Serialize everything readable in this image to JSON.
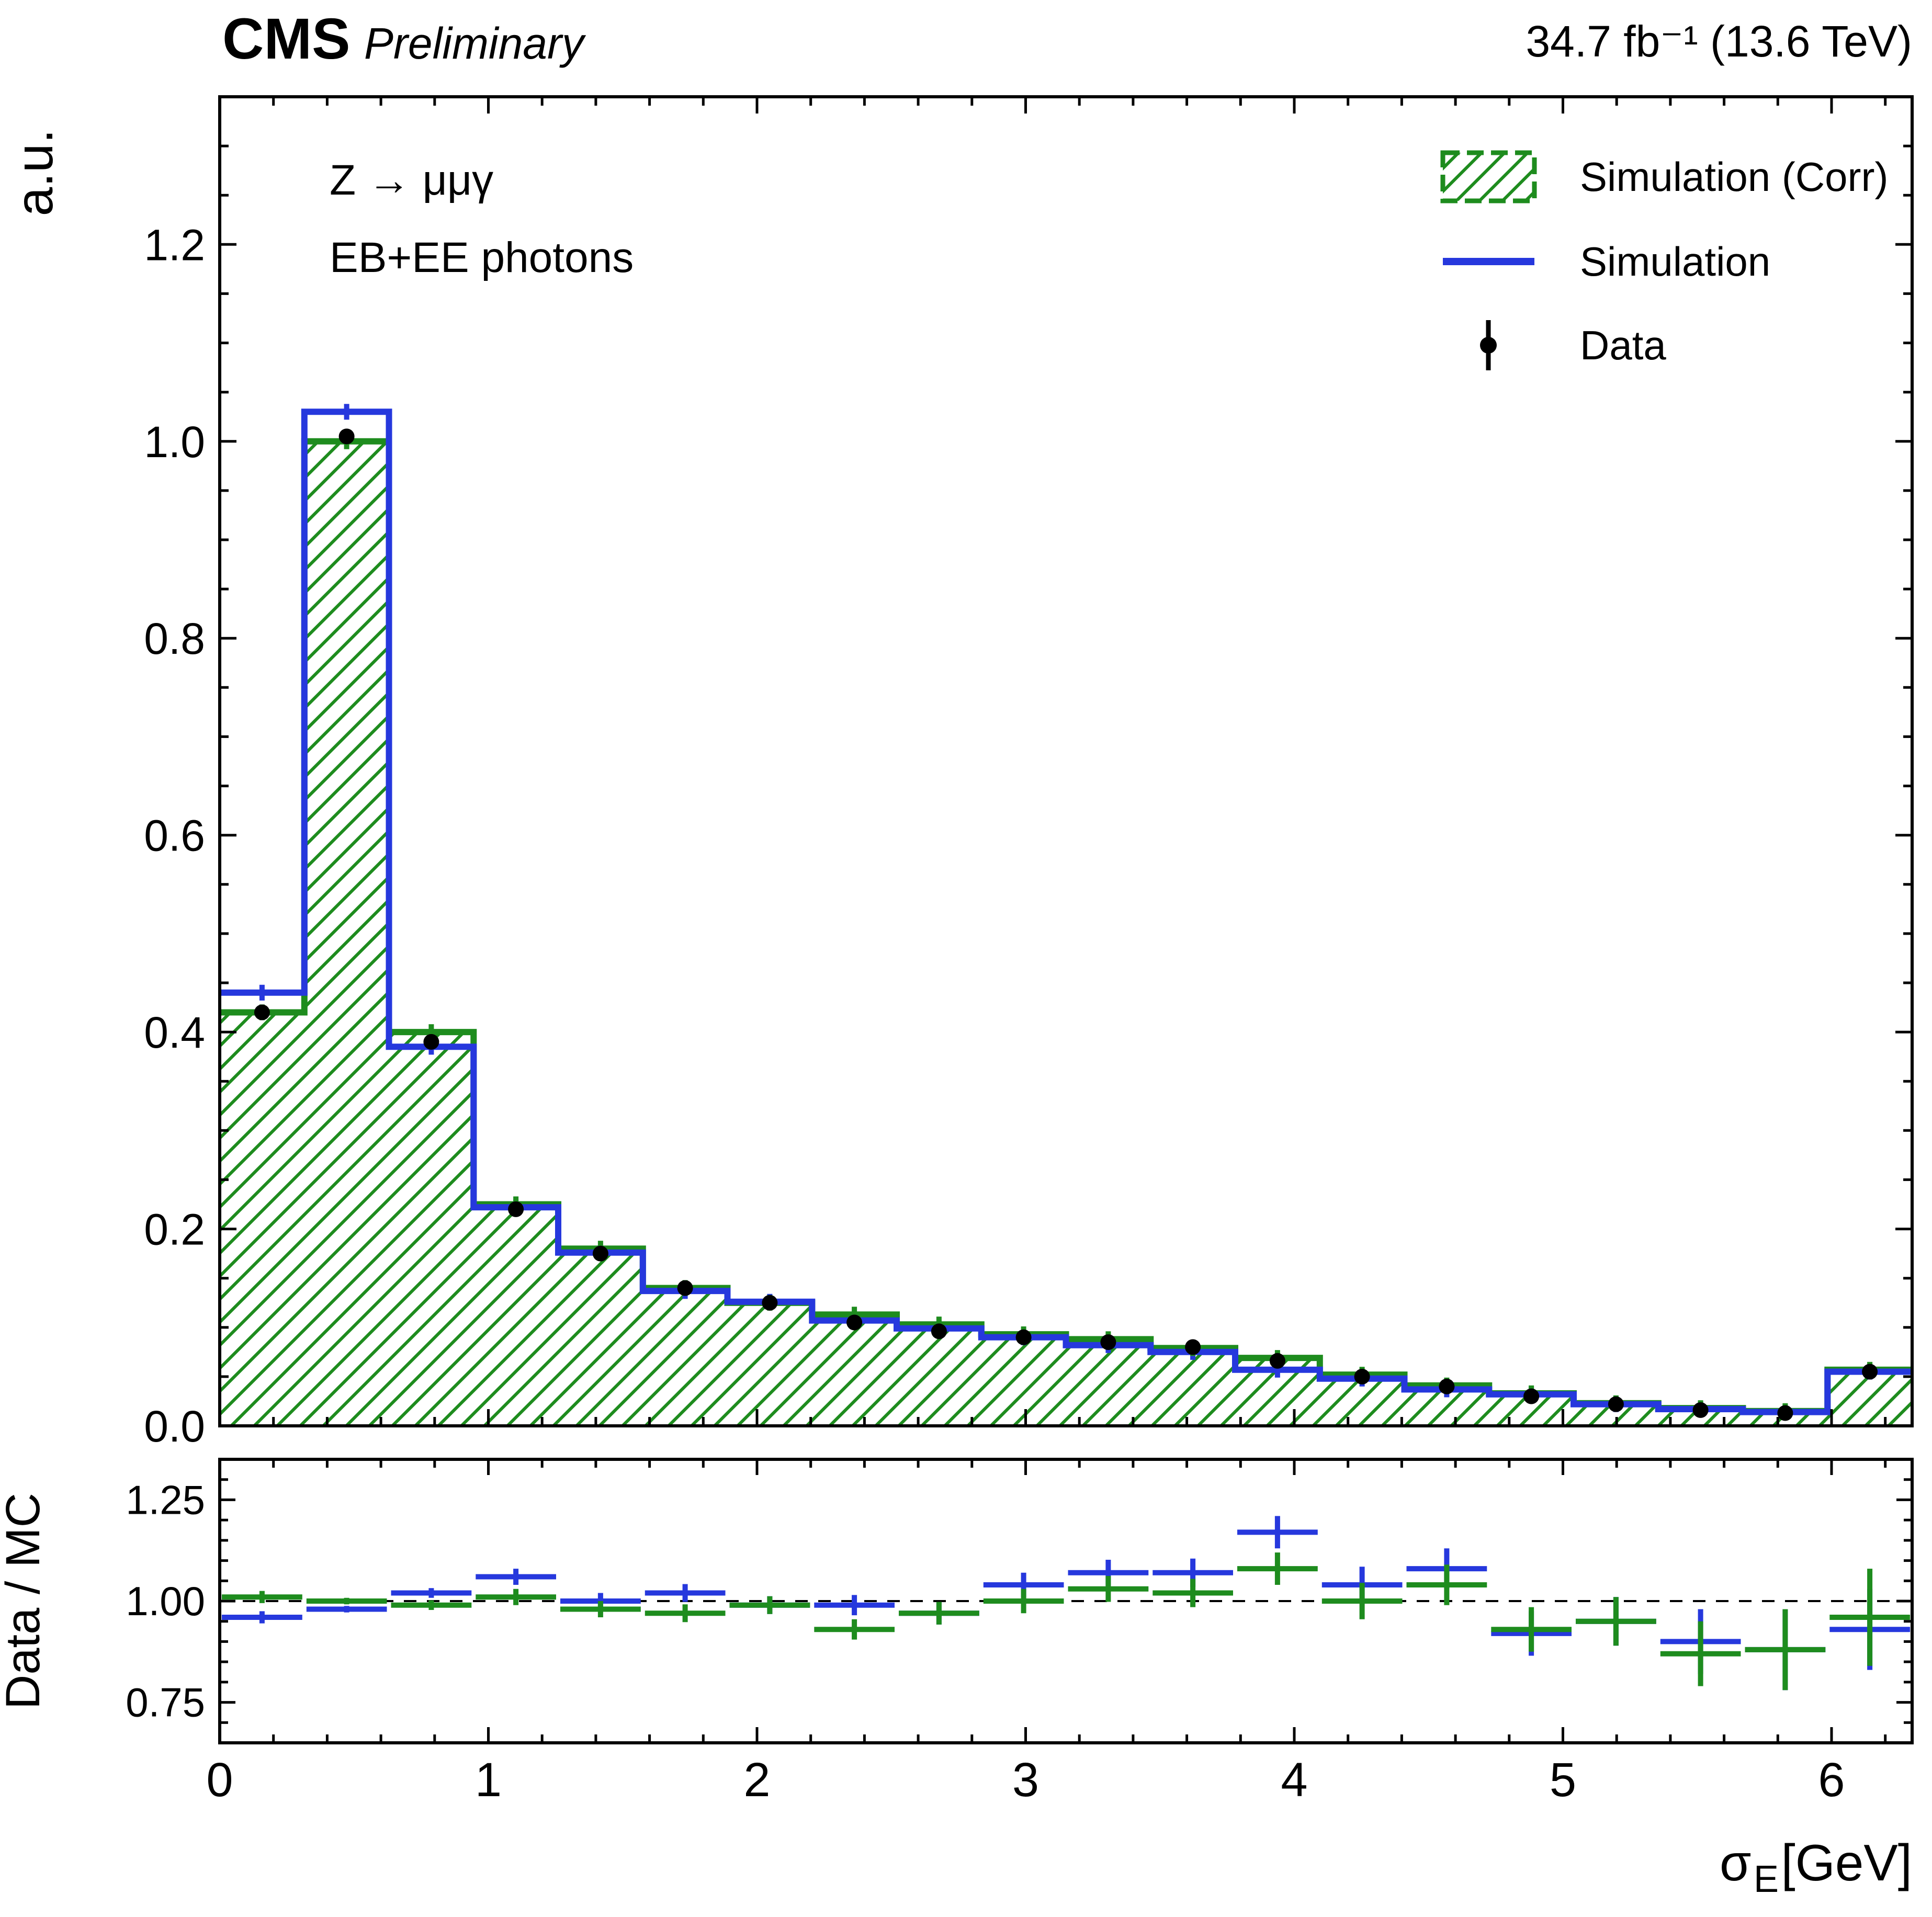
{
  "header": {
    "experiment": "CMS",
    "status": "Preliminary",
    "lumi": "34.7 fb⁻¹ (13.6 TeV)"
  },
  "annotations": {
    "process": "Z → μμγ",
    "selection": "EB+EE photons"
  },
  "axes": {
    "main_y_title": "a.u.",
    "ratio_y_title": "Data / MC",
    "x_symbol": "σ",
    "x_subscript": "E",
    "x_unit": " [GeV]"
  },
  "legend": {
    "items": [
      {
        "label": "Simulation (Corr)",
        "marker": "hatched-box"
      },
      {
        "label": "Simulation",
        "marker": "line"
      },
      {
        "label": "Data",
        "marker": "point-errorbar"
      }
    ]
  },
  "colors": {
    "sim_corr_green": "#1e8c1e",
    "sim_blue": "#2638dd",
    "data_black": "#000000"
  },
  "chart_data": {
    "type": "histogram+ratio",
    "x_range": [
      0,
      6.3
    ],
    "bins": 20,
    "xticks": [
      0,
      1,
      2,
      3,
      4,
      5,
      6
    ],
    "xtick_labels": [
      "0",
      "1",
      "2",
      "3",
      "4",
      "5",
      "6"
    ],
    "mc_stat_error": 0.008,
    "main": {
      "ylim": [
        0,
        1.35
      ],
      "yticks": [
        0,
        0.2,
        0.4,
        0.6,
        0.8,
        1.0,
        1.2
      ],
      "ytick_labels": [
        "0.0",
        "0.2",
        "0.4",
        "0.6",
        "0.8",
        "1.0",
        "1.2"
      ],
      "series": [
        {
          "name": "Simulation (Corr)",
          "style": "hatched_steps",
          "values": [
            0.42,
            1.0,
            0.4,
            0.225,
            0.18,
            0.14,
            0.125,
            0.113,
            0.103,
            0.093,
            0.088,
            0.079,
            0.069,
            0.052,
            0.041,
            0.033,
            0.023,
            0.018,
            0.015,
            0.057
          ]
        },
        {
          "name": "Simulation",
          "style": "steps",
          "values": [
            0.44,
            1.03,
            0.385,
            0.222,
            0.176,
            0.137,
            0.126,
            0.107,
            0.099,
            0.09,
            0.082,
            0.075,
            0.057,
            0.048,
            0.037,
            0.032,
            0.022,
            0.017,
            0.014,
            0.055
          ]
        },
        {
          "name": "Data",
          "style": "points",
          "error": 0.005,
          "values": [
            0.42,
            1.005,
            0.39,
            0.22,
            0.175,
            0.14,
            0.125,
            0.105,
            0.096,
            0.09,
            0.085,
            0.08,
            0.066,
            0.05,
            0.04,
            0.03,
            0.022,
            0.016,
            0.013,
            0.055
          ]
        }
      ]
    },
    "ratio": {
      "ylim": [
        0.65,
        1.35
      ],
      "yticks": [
        0.75,
        1.0,
        1.25
      ],
      "ytick_labels": [
        "0.75",
        "1.00",
        "1.25"
      ],
      "reference_line": 1.0,
      "series": [
        {
          "name": "Data / Simulation",
          "color_key": "sim_blue",
          "values": [
            0.96,
            0.98,
            1.02,
            1.06,
            1.0,
            1.02,
            0.99,
            0.99,
            0.97,
            1.04,
            1.07,
            1.07,
            1.17,
            1.04,
            1.08,
            0.92,
            0.95,
            0.9,
            0.88,
            0.93
          ],
          "errors": [
            0.015,
            0.008,
            0.012,
            0.02,
            0.02,
            0.022,
            0.022,
            0.025,
            0.028,
            0.03,
            0.032,
            0.035,
            0.04,
            0.045,
            0.05,
            0.055,
            0.06,
            0.08,
            0.1,
            0.1
          ]
        },
        {
          "name": "Data / Simulation (Corr)",
          "color_key": "sim_corr_green",
          "values": [
            1.01,
            1.0,
            0.99,
            1.01,
            0.98,
            0.97,
            0.99,
            0.93,
            0.97,
            1.0,
            1.03,
            1.02,
            1.08,
            1.0,
            1.04,
            0.93,
            0.95,
            0.87,
            0.88,
            0.96
          ],
          "errors": [
            0.015,
            0.008,
            0.012,
            0.02,
            0.02,
            0.022,
            0.022,
            0.025,
            0.028,
            0.03,
            0.032,
            0.035,
            0.04,
            0.045,
            0.05,
            0.055,
            0.06,
            0.08,
            0.1,
            0.12
          ]
        }
      ]
    }
  }
}
